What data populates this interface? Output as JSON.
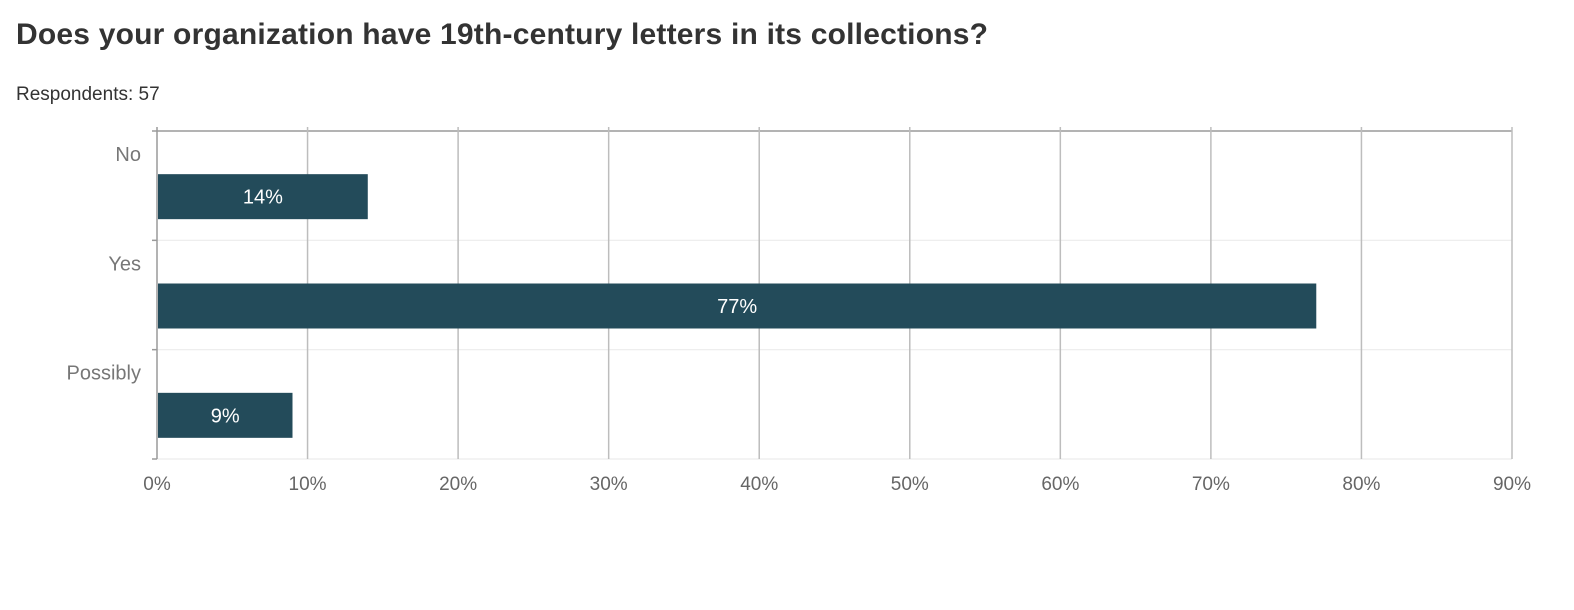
{
  "title": "Does your organization have 19th-century letters in its collections?",
  "respondents": "Respondents: 57",
  "colors": {
    "bar": "#234b5a",
    "grid": "#bdbdbd",
    "row_divider": "#ececec",
    "axis": "#9a9a9a"
  },
  "chart_data": {
    "type": "bar",
    "orientation": "horizontal",
    "title": "Does your organization have 19th-century letters in its collections?",
    "categories": [
      "No",
      "Yes",
      "Possibly"
    ],
    "values": [
      14,
      77,
      9
    ],
    "value_labels": [
      "14%",
      "77%",
      "9%"
    ],
    "xlim": [
      0,
      90
    ],
    "x_ticks": [
      0,
      10,
      20,
      30,
      40,
      50,
      60,
      70,
      80,
      90
    ],
    "x_tick_labels": [
      "0%",
      "10%",
      "20%",
      "30%",
      "40%",
      "50%",
      "60%",
      "70%",
      "80%",
      "90%"
    ],
    "grid": true,
    "legend": "none"
  }
}
